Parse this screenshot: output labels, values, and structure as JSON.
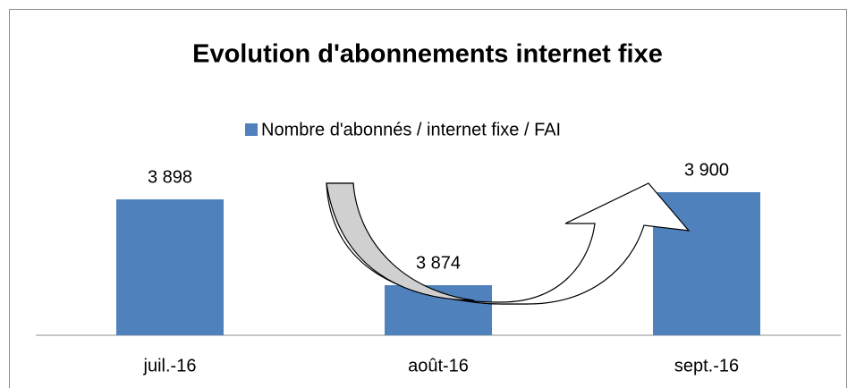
{
  "chart_data": {
    "type": "bar",
    "title": "Evolution d'abonnements internet fixe",
    "categories": [
      "juil.-16",
      "août-16",
      "sept.-16"
    ],
    "series": [
      {
        "name": "Nombre d'abonnés / internet fixe / FAI",
        "color": "#4f81bd",
        "values": [
          3898,
          3874,
          3900
        ],
        "value_labels": [
          "3 898",
          "3 874",
          "3 900"
        ]
      }
    ],
    "ylim": [
      3860,
      3905
    ],
    "legend": "top"
  }
}
